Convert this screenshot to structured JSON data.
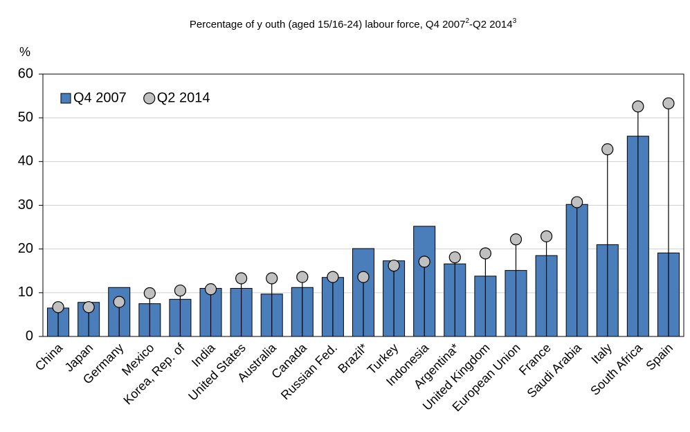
{
  "chart_data": {
    "type": "bar",
    "title_parts": [
      "Percentage of y outh (aged 15/16-24) labour force, Q4 2007",
      "2",
      "-Q2 2014",
      "3"
    ],
    "y_label": "%",
    "categories": [
      "China",
      "Japan",
      "Germany",
      "Mexico",
      "Korea, Rep. of",
      "India",
      "United States",
      "Australia",
      "Canada",
      "Russian Fed.",
      "Brazil*",
      "Turkey",
      "Indonesia",
      "Argentina*",
      "United Kingdom",
      "European Union",
      "France",
      "Saudi Arabia",
      "Italy",
      "South Africa",
      "Spain"
    ],
    "series": [
      {
        "name": "Q4 2007",
        "type": "bar",
        "color": "#4a7ebb",
        "values": [
          6.5,
          7.8,
          11.2,
          7.5,
          8.5,
          11.0,
          11.0,
          9.7,
          11.2,
          13.5,
          20.1,
          17.3,
          25.2,
          16.6,
          13.8,
          15.1,
          18.5,
          30.2,
          21.0,
          45.8,
          19.1
        ]
      },
      {
        "name": "Q2 2014",
        "type": "dot",
        "color": "#c0c0c0",
        "values": [
          6.7,
          6.7,
          7.9,
          9.9,
          10.5,
          10.8,
          13.3,
          13.3,
          13.6,
          13.6,
          13.6,
          16.2,
          17.1,
          18.1,
          19.0,
          22.2,
          22.9,
          30.7,
          42.8,
          52.6,
          53.3
        ]
      }
    ],
    "ylim": [
      0,
      60
    ],
    "yticks": [
      0,
      10,
      20,
      30,
      40,
      50,
      60
    ],
    "grid": true,
    "legend": "top-left"
  }
}
